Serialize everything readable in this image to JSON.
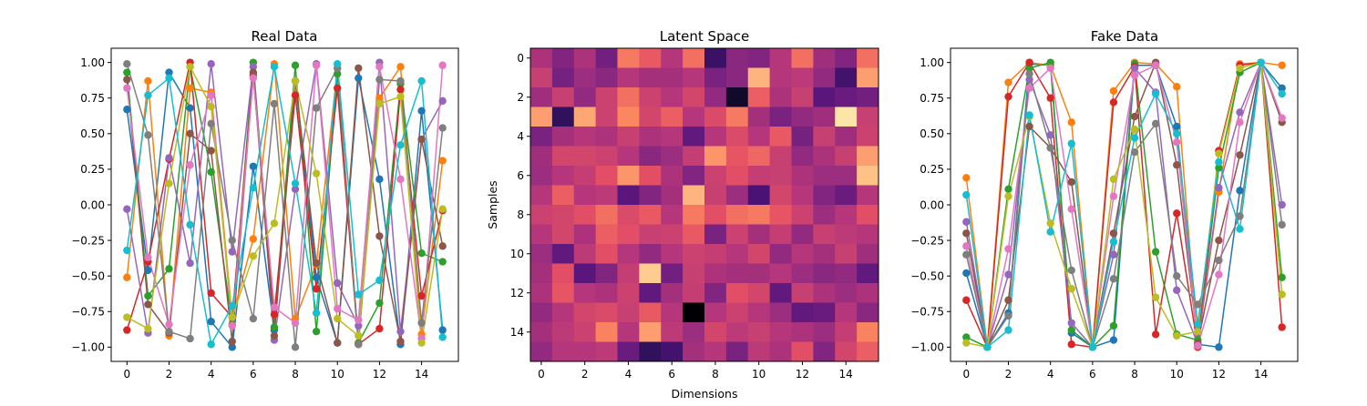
{
  "figure": {
    "panel_titles": [
      "Real Data",
      "Latent Space",
      "Fake Data"
    ]
  },
  "chart_data": [
    {
      "type": "line",
      "title": "Real Data",
      "xlabel": "",
      "ylabel": "",
      "xlim": [
        -0.75,
        15.75
      ],
      "ylim": [
        -1.1,
        1.1
      ],
      "x_ticks": [
        0,
        2,
        4,
        6,
        8,
        10,
        12,
        14
      ],
      "y_ticks": [
        1.0,
        0.75,
        0.5,
        0.25,
        0.0,
        -0.25,
        -0.5,
        -0.75,
        -1.0
      ],
      "y_tick_labels": [
        "1.00",
        "0.75",
        "0.50",
        "0.25",
        "0.00",
        "−0.25",
        "−0.50",
        "−0.75",
        "−1.00"
      ],
      "x": [
        0,
        1,
        2,
        3,
        4,
        5,
        6,
        7,
        8,
        9,
        10,
        11,
        12,
        13,
        14,
        15
      ],
      "markers": true,
      "grid": false,
      "series": [
        {
          "color": "#1f77b4",
          "values": [
            0.67,
            -0.46,
            0.93,
            0.68,
            -0.82,
            -1.0,
            0.27,
            -0.88,
            0.87,
            -0.51,
            -0.97,
            0.89,
            0.18,
            -0.98,
            0.66,
            -0.88
          ]
        },
        {
          "color": "#ff7f0e",
          "values": [
            -0.51,
            0.87,
            -0.92,
            0.82,
            0.79,
            -0.79,
            -0.24,
            0.99,
            -0.8,
            -0.42,
            0.96,
            -0.97,
            0.75,
            0.97,
            -0.91,
            0.31
          ]
        },
        {
          "color": "#2ca02c",
          "values": [
            0.93,
            -0.64,
            -0.45,
            0.97,
            0.23,
            -0.84,
            1.0,
            -0.86,
            0.98,
            -0.89,
            0.92,
            -0.97,
            -0.69,
            0.85,
            -0.34,
            -0.4
          ]
        },
        {
          "color": "#d62728",
          "values": [
            -0.88,
            -0.4,
            0.32,
            1.0,
            -0.62,
            -0.79,
            0.91,
            -0.77,
            0.77,
            -0.59,
            0.82,
            -0.98,
            -0.87,
            0.81,
            -0.64,
            -0.04
          ]
        },
        {
          "color": "#9467bd",
          "values": [
            -0.03,
            -0.9,
            0.33,
            -0.41,
            0.99,
            -0.33,
            0.97,
            -0.95,
            0.11,
            0.99,
            -0.55,
            -0.85,
            1.0,
            -0.89,
            0.46,
            0.73
          ]
        },
        {
          "color": "#8c564b",
          "values": [
            0.88,
            -0.7,
            -0.9,
            0.5,
            0.38,
            -0.96,
            0.93,
            -0.92,
            0.87,
            -0.41,
            -0.97,
            0.96,
            -0.22,
            -0.96,
            0.46,
            -0.29
          ]
        },
        {
          "color": "#e377c2",
          "values": [
            0.82,
            -0.37,
            -0.84,
            0.28,
            0.77,
            -0.85,
            0.89,
            -0.72,
            -0.83,
            0.98,
            -0.73,
            -0.81,
            0.97,
            0.18,
            -0.94,
            0.98
          ]
        },
        {
          "color": "#7f7f7f",
          "values": [
            0.99,
            0.49,
            -0.89,
            -0.94,
            0.57,
            -0.25,
            -0.8,
            0.71,
            -1.0,
            0.68,
            0.96,
            -0.98,
            0.88,
            0.87,
            -0.83,
            0.54
          ]
        },
        {
          "color": "#bcbd22",
          "values": [
            -0.79,
            -0.87,
            0.15,
            0.97,
            0.69,
            -0.79,
            -0.36,
            -0.13,
            0.87,
            0.22,
            -0.8,
            -0.92,
            0.71,
            0.76,
            -0.97,
            -0.03
          ]
        },
        {
          "color": "#17becf",
          "values": [
            -0.32,
            0.77,
            0.89,
            -0.14,
            -0.98,
            -0.71,
            0.12,
            0.97,
            0.15,
            -0.76,
            0.99,
            -0.63,
            -0.53,
            0.42,
            0.87,
            -0.93
          ]
        }
      ]
    },
    {
      "type": "heatmap",
      "title": "Latent Space",
      "xlabel": "Dimensions",
      "ylabel": "Samples",
      "colormap": "magma-like",
      "x_ticks": [
        0,
        2,
        4,
        6,
        8,
        10,
        12,
        14
      ],
      "y_ticks": [
        0,
        2,
        4,
        6,
        8,
        10,
        12,
        14
      ],
      "rows": 16,
      "cols": 16,
      "values": [
        [
          0.48,
          0.38,
          0.48,
          0.34,
          0.72,
          0.65,
          0.5,
          0.7,
          0.2,
          0.4,
          0.38,
          0.5,
          0.7,
          0.45,
          0.38,
          0.7
        ],
        [
          0.55,
          0.35,
          0.44,
          0.4,
          0.5,
          0.46,
          0.46,
          0.5,
          0.36,
          0.4,
          0.85,
          0.5,
          0.52,
          0.42,
          0.22,
          0.8
        ],
        [
          0.45,
          0.55,
          0.42,
          0.56,
          0.7,
          0.56,
          0.5,
          0.58,
          0.42,
          0.08,
          0.66,
          0.48,
          0.55,
          0.28,
          0.32,
          0.34
        ],
        [
          0.8,
          0.18,
          0.82,
          0.56,
          0.75,
          0.58,
          0.66,
          0.5,
          0.6,
          0.72,
          0.46,
          0.36,
          0.42,
          0.45,
          0.95,
          0.55
        ],
        [
          0.36,
          0.46,
          0.5,
          0.48,
          0.55,
          0.48,
          0.5,
          0.3,
          0.5,
          0.6,
          0.5,
          0.65,
          0.35,
          0.55,
          0.45,
          0.56
        ],
        [
          0.45,
          0.58,
          0.58,
          0.56,
          0.5,
          0.4,
          0.44,
          0.54,
          0.78,
          0.64,
          0.68,
          0.55,
          0.42,
          0.48,
          0.55,
          0.8
        ],
        [
          0.44,
          0.5,
          0.54,
          0.62,
          0.78,
          0.62,
          0.48,
          0.38,
          0.56,
          0.62,
          0.54,
          0.55,
          0.48,
          0.44,
          0.44,
          0.88
        ],
        [
          0.5,
          0.66,
          0.5,
          0.52,
          0.28,
          0.38,
          0.46,
          0.85,
          0.55,
          0.44,
          0.24,
          0.58,
          0.5,
          0.38,
          0.32,
          0.5
        ],
        [
          0.56,
          0.58,
          0.62,
          0.7,
          0.6,
          0.65,
          0.5,
          0.72,
          0.62,
          0.7,
          0.72,
          0.64,
          0.56,
          0.44,
          0.5,
          0.62
        ],
        [
          0.5,
          0.58,
          0.48,
          0.66,
          0.62,
          0.55,
          0.56,
          0.65,
          0.36,
          0.56,
          0.46,
          0.54,
          0.42,
          0.55,
          0.52,
          0.5
        ],
        [
          0.44,
          0.3,
          0.52,
          0.62,
          0.5,
          0.42,
          0.5,
          0.56,
          0.54,
          0.5,
          0.58,
          0.42,
          0.5,
          0.46,
          0.55,
          0.45
        ],
        [
          0.46,
          0.62,
          0.28,
          0.38,
          0.54,
          0.9,
          0.34,
          0.55,
          0.48,
          0.46,
          0.46,
          0.5,
          0.44,
          0.4,
          0.42,
          0.3
        ],
        [
          0.48,
          0.64,
          0.5,
          0.48,
          0.56,
          0.3,
          0.46,
          0.54,
          0.38,
          0.62,
          0.58,
          0.3,
          0.55,
          0.48,
          0.44,
          0.48
        ],
        [
          0.42,
          0.5,
          0.58,
          0.6,
          0.55,
          0.65,
          0.5,
          0.0,
          0.5,
          0.56,
          0.5,
          0.44,
          0.3,
          0.32,
          0.5,
          0.4
        ],
        [
          0.46,
          0.52,
          0.56,
          0.74,
          0.5,
          0.8,
          0.52,
          0.44,
          0.58,
          0.52,
          0.55,
          0.5,
          0.48,
          0.44,
          0.54,
          0.74
        ],
        [
          0.42,
          0.5,
          0.5,
          0.52,
          0.32,
          0.18,
          0.22,
          0.46,
          0.5,
          0.36,
          0.52,
          0.48,
          0.62,
          0.38,
          0.58,
          0.66
        ]
      ]
    },
    {
      "type": "line",
      "title": "Fake Data",
      "xlabel": "",
      "ylabel": "",
      "xlim": [
        -0.75,
        15.75
      ],
      "ylim": [
        -1.1,
        1.1
      ],
      "x_ticks": [
        0,
        2,
        4,
        6,
        8,
        10,
        12,
        14
      ],
      "y_ticks": [
        1.0,
        0.75,
        0.5,
        0.25,
        0.0,
        -0.25,
        -0.5,
        -0.75,
        -1.0
      ],
      "y_tick_labels": [
        "1.00",
        "0.75",
        "0.50",
        "0.25",
        "0.00",
        "−0.25",
        "−0.50",
        "−0.75",
        "−1.00"
      ],
      "x": [
        0,
        1,
        2,
        3,
        4,
        5,
        6,
        7,
        8,
        9,
        10,
        11,
        12,
        13,
        14,
        15
      ],
      "markers": true,
      "grid": false,
      "series": [
        {
          "color": "#1f77b4",
          "values": [
            -0.48,
            -1.0,
            -0.76,
            0.99,
            0.98,
            -0.9,
            -1.0,
            -0.95,
            0.98,
            0.98,
            0.55,
            -0.98,
            -1.0,
            0.1,
            1.0,
            0.82
          ]
        },
        {
          "color": "#ff7f0e",
          "values": [
            0.19,
            -1.0,
            0.86,
            1.0,
            0.98,
            0.58,
            -1.0,
            0.8,
            1.0,
            0.99,
            0.83,
            -0.99,
            0.09,
            0.99,
            1.0,
            0.98
          ]
        },
        {
          "color": "#2ca02c",
          "values": [
            -0.93,
            -1.0,
            0.11,
            0.96,
            1.0,
            -0.88,
            -1.0,
            -0.85,
            0.99,
            -0.33,
            -0.91,
            -0.95,
            0.26,
            0.93,
            1.0,
            -0.51
          ]
        },
        {
          "color": "#d62728",
          "values": [
            -0.67,
            -1.0,
            0.76,
            1.0,
            0.75,
            -0.98,
            -1.0,
            0.72,
            0.97,
            -0.91,
            -0.06,
            -1.0,
            0.38,
            0.98,
            1.0,
            -0.86
          ]
        },
        {
          "color": "#9467bd",
          "values": [
            -0.12,
            -1.0,
            -0.49,
            0.88,
            0.49,
            -0.83,
            -1.0,
            -0.35,
            0.96,
            0.79,
            -0.6,
            -0.98,
            0.12,
            0.65,
            1.0,
            0.0
          ]
        },
        {
          "color": "#8c564b",
          "values": [
            -0.2,
            -1.0,
            -0.67,
            0.55,
            0.4,
            0.16,
            -1.0,
            -0.2,
            0.62,
            1.0,
            0.28,
            -0.97,
            -0.25,
            0.35,
            1.0,
            0.58
          ]
        },
        {
          "color": "#e377c2",
          "values": [
            -0.29,
            -1.0,
            -0.31,
            0.82,
            0.96,
            -0.03,
            -1.0,
            0.06,
            0.91,
            0.98,
            0.44,
            -0.99,
            -0.49,
            0.58,
            1.0,
            0.61
          ]
        },
        {
          "color": "#7f7f7f",
          "values": [
            -0.35,
            -1.0,
            -0.78,
            0.92,
            0.4,
            -0.46,
            -1.0,
            -0.52,
            0.37,
            0.57,
            -0.5,
            -0.7,
            -0.39,
            -0.08,
            1.0,
            -0.14
          ]
        },
        {
          "color": "#bcbd22",
          "values": [
            -0.97,
            -1.0,
            0.06,
            0.62,
            -0.13,
            -0.59,
            -1.0,
            0.18,
            0.53,
            -0.65,
            -0.92,
            -0.89,
            0.36,
            0.96,
            1.0,
            -0.63
          ]
        },
        {
          "color": "#17becf",
          "values": [
            0.07,
            -1.0,
            -0.88,
            0.63,
            -0.19,
            0.43,
            -1.0,
            -0.26,
            0.47,
            0.78,
            0.5,
            -0.84,
            0.3,
            -0.17,
            1.0,
            0.78
          ]
        }
      ]
    }
  ]
}
